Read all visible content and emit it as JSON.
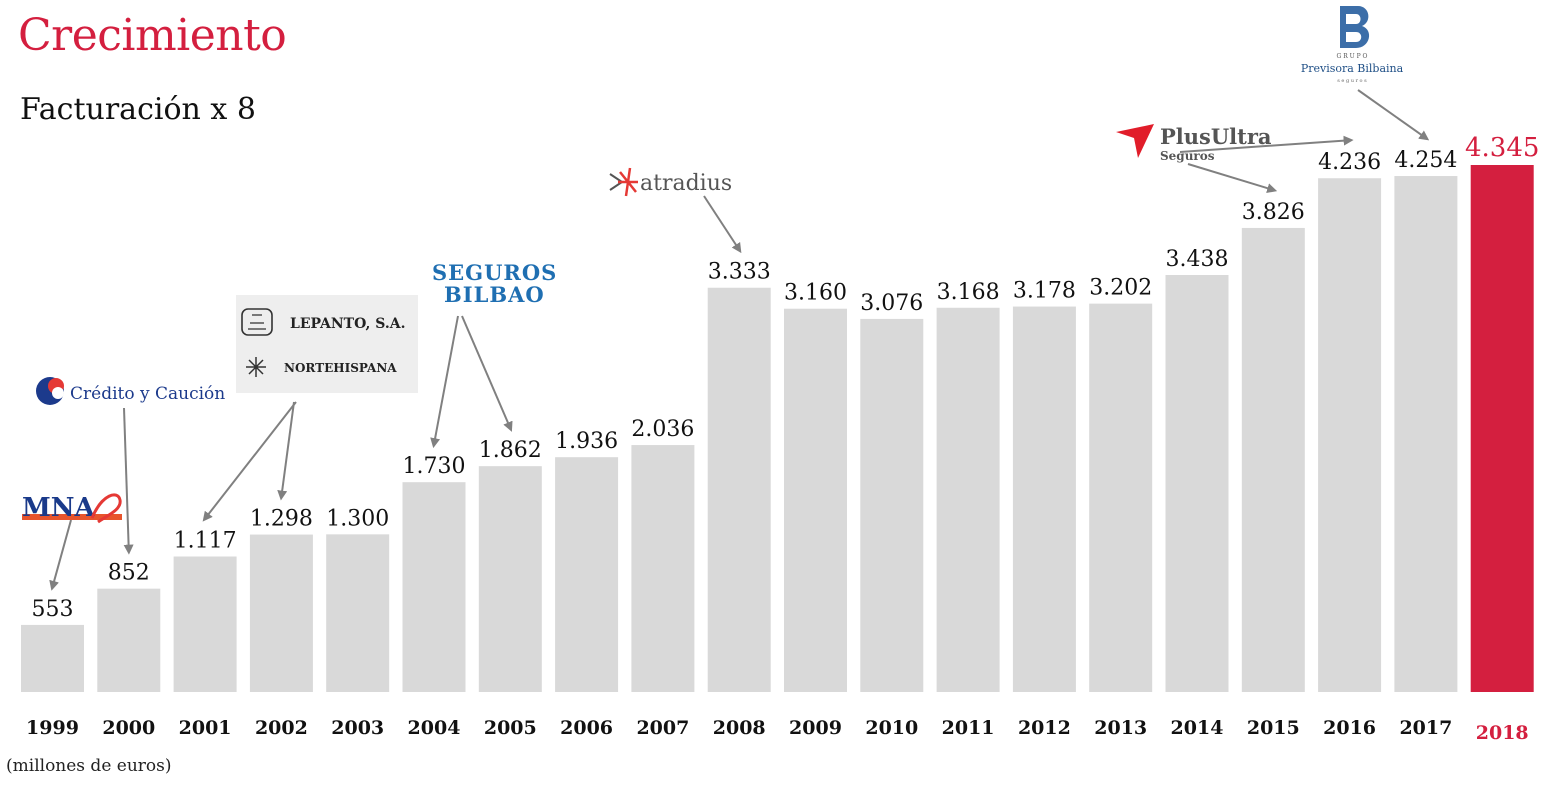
{
  "colors": {
    "bar": "#d9d9d9",
    "highlight": "#d41f3f",
    "text": "#111111",
    "arrow": "#808080"
  },
  "header": {
    "title": "Crecimiento",
    "subtitle": "Facturación x 8"
  },
  "footnote": "(millones de euros)",
  "chart_data": {
    "type": "bar",
    "categories": [
      "1999",
      "2000",
      "2001",
      "2002",
      "2003",
      "2004",
      "2005",
      "2006",
      "2007",
      "2008",
      "2009",
      "2010",
      "2011",
      "2012",
      "2013",
      "2014",
      "2015",
      "2016",
      "2017",
      "2018"
    ],
    "values": [
      553,
      852,
      1117,
      1298,
      1300,
      1730,
      1862,
      1936,
      2036,
      3333,
      3160,
      3076,
      3168,
      3178,
      3202,
      3438,
      3826,
      4236,
      4254,
      4345
    ],
    "value_labels": [
      "553",
      "852",
      "1.117",
      "1.298",
      "1.300",
      "1.730",
      "1.862",
      "1.936",
      "2.036",
      "3.333",
      "3.160",
      "3.076",
      "3.168",
      "3.178",
      "3.202",
      "3.438",
      "3.826",
      "4.236",
      "4.254",
      "4.345"
    ],
    "highlight_category": "2018",
    "ylim": [
      0,
      4500
    ],
    "grid": false,
    "legend": "none",
    "annotations": [
      {
        "name": "mna-logo",
        "text": "MNA",
        "targets": [
          "1999"
        ]
      },
      {
        "name": "credito-y-caucion-logo",
        "text": "Crédito y Caución",
        "targets": [
          "2000"
        ]
      },
      {
        "name": "lepanto-nortehispana-logo",
        "text": [
          "LEPANTO, S.A.",
          "NORTEHISPANA"
        ],
        "targets": [
          "2001",
          "2002"
        ]
      },
      {
        "name": "seguros-bilbao-logo",
        "text": [
          "SEGUROS",
          "BILBAO"
        ],
        "targets": [
          "2004",
          "2005"
        ]
      },
      {
        "name": "atradius-logo",
        "text": "atradius",
        "targets": [
          "2008"
        ]
      },
      {
        "name": "plus-ultra-logo",
        "text": [
          "PlusUltra",
          "Seguros"
        ],
        "targets": [
          "2015",
          "2016"
        ]
      },
      {
        "name": "previsora-bilbaina-logo",
        "text": [
          "G R U P O",
          "Previsora Bilbaina",
          "s e g u r o s"
        ],
        "targets": [
          "2017"
        ]
      }
    ]
  }
}
